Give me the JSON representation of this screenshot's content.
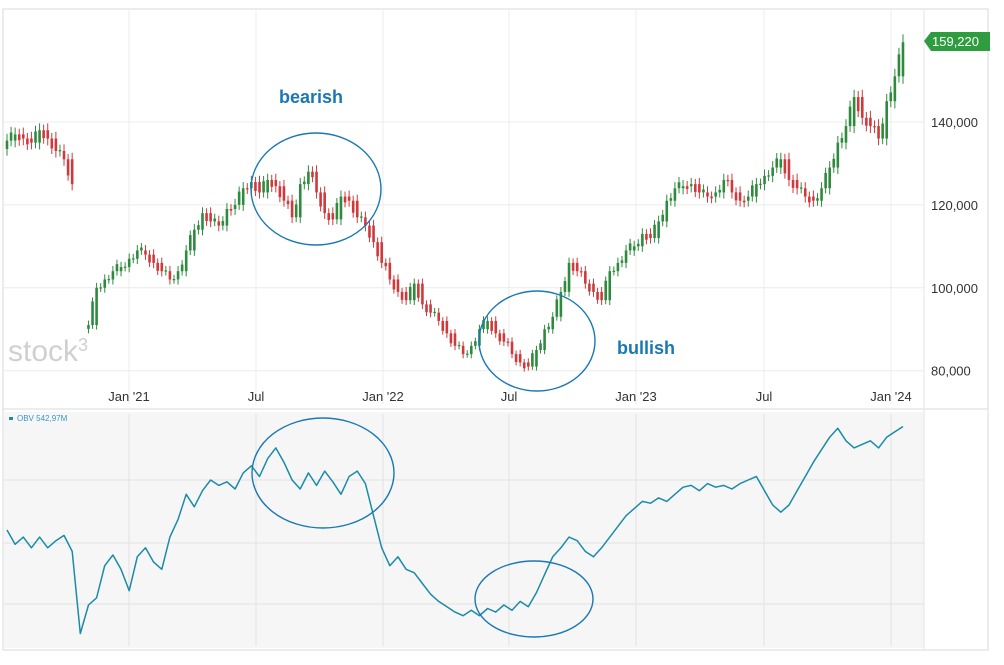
{
  "logo_text": "stock",
  "logo_superscript": "3",
  "chart_data": [
    {
      "type": "candlestick",
      "title": "",
      "x_tick_labels": [
        "Jan '21",
        "Jul",
        "Jan '22",
        "Jul",
        "Jan '23",
        "Jul",
        "Jan '24"
      ],
      "y_ticks": [
        80000,
        100000,
        120000,
        140000
      ],
      "y_tick_labels": [
        "80,000",
        "100,000",
        "120,000",
        "140,000"
      ],
      "ylim": [
        71000,
        167000
      ],
      "last_price_label": "159,220",
      "last_price": 159220,
      "grid": true,
      "colors": {
        "up": "#2e8b3e",
        "down": "#d0393c",
        "price_tag": "#2e9c3f"
      },
      "annotations": [
        {
          "text": "bearish"
        },
        {
          "text": "bullish"
        }
      ],
      "close_series": [
        [
          0,
          135500
        ],
        [
          2,
          137000
        ],
        [
          4,
          136000
        ],
        [
          6,
          135000
        ],
        [
          8,
          138000
        ],
        [
          10,
          136000
        ],
        [
          12,
          133000
        ],
        [
          14,
          131000
        ],
        [
          16,
          125000
        ],
        [
          20,
          91000
        ],
        [
          22,
          100000
        ],
        [
          24,
          102000
        ],
        [
          26,
          104000
        ],
        [
          28,
          105000
        ],
        [
          30,
          107000
        ],
        [
          32,
          109000
        ],
        [
          34,
          108000
        ],
        [
          36,
          106000
        ],
        [
          38,
          104000
        ],
        [
          40,
          102000
        ],
        [
          42,
          104000
        ],
        [
          44,
          109000
        ],
        [
          46,
          114000
        ],
        [
          48,
          118000
        ],
        [
          50,
          116000
        ],
        [
          52,
          115000
        ],
        [
          54,
          119000
        ],
        [
          56,
          120000
        ],
        [
          58,
          124000
        ],
        [
          60,
          125500
        ],
        [
          62,
          123000
        ],
        [
          64,
          126000
        ],
        [
          66,
          124500
        ],
        [
          68,
          121000
        ],
        [
          70,
          117000
        ],
        [
          72,
          125000
        ],
        [
          74,
          128000
        ],
        [
          76,
          123000
        ],
        [
          78,
          118000
        ],
        [
          80,
          116500
        ],
        [
          82,
          122000
        ],
        [
          84,
          121000
        ],
        [
          86,
          117000
        ],
        [
          88,
          115000
        ],
        [
          90,
          111000
        ],
        [
          92,
          106000
        ],
        [
          94,
          102000
        ],
        [
          96,
          99000
        ],
        [
          98,
          97000
        ],
        [
          100,
          101000
        ],
        [
          102,
          96000
        ],
        [
          104,
          94000
        ],
        [
          106,
          92000
        ],
        [
          108,
          89000
        ],
        [
          110,
          86000
        ],
        [
          112,
          84000
        ],
        [
          114,
          86000
        ],
        [
          116,
          90000
        ],
        [
          118,
          92000
        ],
        [
          120,
          89000
        ],
        [
          122,
          87000
        ],
        [
          124,
          84000
        ],
        [
          126,
          82000
        ],
        [
          128,
          81000
        ],
        [
          130,
          85000
        ],
        [
          132,
          90000
        ],
        [
          134,
          93000
        ],
        [
          136,
          99000
        ],
        [
          138,
          106000
        ],
        [
          140,
          104000
        ],
        [
          142,
          101000
        ],
        [
          144,
          99000
        ],
        [
          146,
          97000
        ],
        [
          148,
          104000
        ],
        [
          150,
          106000
        ],
        [
          152,
          109000
        ],
        [
          154,
          110000
        ],
        [
          156,
          113000
        ],
        [
          158,
          112000
        ],
        [
          160,
          116000
        ],
        [
          162,
          121000
        ],
        [
          164,
          124000
        ],
        [
          166,
          124500
        ],
        [
          168,
          125000
        ],
        [
          170,
          123000
        ],
        [
          172,
          122000
        ],
        [
          174,
          123000
        ],
        [
          176,
          126000
        ],
        [
          178,
          123000
        ],
        [
          180,
          121000
        ],
        [
          182,
          122000
        ],
        [
          184,
          125000
        ],
        [
          186,
          127000
        ],
        [
          188,
          129000
        ],
        [
          190,
          131000
        ],
        [
          192,
          126000
        ],
        [
          194,
          124000
        ],
        [
          196,
          122000
        ],
        [
          198,
          121000
        ],
        [
          200,
          124000
        ],
        [
          202,
          129000
        ],
        [
          204,
          135000
        ],
        [
          206,
          139000
        ],
        [
          208,
          146000
        ],
        [
          210,
          141000
        ],
        [
          212,
          139000
        ],
        [
          214,
          136000
        ],
        [
          216,
          145000
        ],
        [
          218,
          151000
        ],
        [
          220,
          159220
        ]
      ]
    },
    {
      "type": "line",
      "series": [
        {
          "name": "OBV",
          "last_value_label": "542,97M",
          "color": "#1b8ba8"
        }
      ],
      "grid": true,
      "values": [
        [
          0,
          0.7
        ],
        [
          2,
          0.62
        ],
        [
          4,
          0.66
        ],
        [
          6,
          0.6
        ],
        [
          8,
          0.66
        ],
        [
          10,
          0.6
        ],
        [
          12,
          0.64
        ],
        [
          14,
          0.67
        ],
        [
          16,
          0.58
        ],
        [
          18,
          0.12
        ],
        [
          20,
          0.28
        ],
        [
          22,
          0.32
        ],
        [
          24,
          0.5
        ],
        [
          26,
          0.56
        ],
        [
          28,
          0.48
        ],
        [
          30,
          0.36
        ],
        [
          32,
          0.55
        ],
        [
          34,
          0.6
        ],
        [
          36,
          0.52
        ],
        [
          38,
          0.48
        ],
        [
          40,
          0.66
        ],
        [
          42,
          0.76
        ],
        [
          44,
          0.9
        ],
        [
          46,
          0.83
        ],
        [
          48,
          0.92
        ],
        [
          50,
          0.98
        ],
        [
          52,
          0.95
        ],
        [
          54,
          0.97
        ],
        [
          56,
          0.93
        ],
        [
          58,
          1.02
        ],
        [
          60,
          1.06
        ],
        [
          62,
          1.0
        ],
        [
          64,
          1.1
        ],
        [
          66,
          1.16
        ],
        [
          68,
          1.08
        ],
        [
          70,
          0.98
        ],
        [
          72,
          0.93
        ],
        [
          74,
          1.02
        ],
        [
          76,
          0.95
        ],
        [
          78,
          1.03
        ],
        [
          80,
          0.97
        ],
        [
          82,
          0.9
        ],
        [
          84,
          1.0
        ],
        [
          86,
          1.03
        ],
        [
          88,
          0.96
        ],
        [
          90,
          0.78
        ],
        [
          92,
          0.6
        ],
        [
          94,
          0.5
        ],
        [
          96,
          0.55
        ],
        [
          98,
          0.48
        ],
        [
          100,
          0.46
        ],
        [
          102,
          0.4
        ],
        [
          104,
          0.34
        ],
        [
          106,
          0.3
        ],
        [
          108,
          0.27
        ],
        [
          110,
          0.24
        ],
        [
          112,
          0.22
        ],
        [
          114,
          0.25
        ],
        [
          116,
          0.22
        ],
        [
          118,
          0.26
        ],
        [
          120,
          0.24
        ],
        [
          122,
          0.28
        ],
        [
          124,
          0.25
        ],
        [
          126,
          0.3
        ],
        [
          128,
          0.27
        ],
        [
          130,
          0.35
        ],
        [
          132,
          0.45
        ],
        [
          134,
          0.55
        ],
        [
          136,
          0.6
        ],
        [
          138,
          0.66
        ],
        [
          140,
          0.64
        ],
        [
          142,
          0.58
        ],
        [
          144,
          0.55
        ],
        [
          146,
          0.6
        ],
        [
          148,
          0.66
        ],
        [
          150,
          0.72
        ],
        [
          152,
          0.78
        ],
        [
          154,
          0.82
        ],
        [
          156,
          0.86
        ],
        [
          158,
          0.85
        ],
        [
          160,
          0.88
        ],
        [
          162,
          0.86
        ],
        [
          164,
          0.9
        ],
        [
          166,
          0.94
        ],
        [
          168,
          0.95
        ],
        [
          170,
          0.92
        ],
        [
          172,
          0.96
        ],
        [
          174,
          0.94
        ],
        [
          176,
          0.95
        ],
        [
          178,
          0.93
        ],
        [
          180,
          0.96
        ],
        [
          182,
          0.98
        ],
        [
          184,
          1.0
        ],
        [
          186,
          0.92
        ],
        [
          188,
          0.84
        ],
        [
          190,
          0.8
        ],
        [
          192,
          0.84
        ],
        [
          194,
          0.92
        ],
        [
          196,
          1.0
        ],
        [
          198,
          1.08
        ],
        [
          200,
          1.15
        ],
        [
          202,
          1.22
        ],
        [
          204,
          1.27
        ],
        [
          206,
          1.2
        ],
        [
          208,
          1.16
        ],
        [
          210,
          1.18
        ],
        [
          212,
          1.2
        ],
        [
          214,
          1.16
        ],
        [
          216,
          1.22
        ],
        [
          218,
          1.25
        ],
        [
          220,
          1.28
        ]
      ],
      "ylim": [
        0.05,
        1.35
      ]
    }
  ]
}
